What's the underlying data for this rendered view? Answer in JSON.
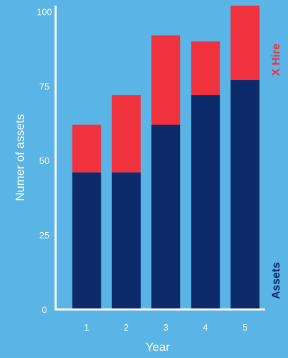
{
  "chart_data": {
    "type": "bar",
    "stacked": true,
    "categories": [
      "1",
      "2",
      "3",
      "4",
      "5"
    ],
    "series": [
      {
        "name": "Assets",
        "values": [
          46,
          46,
          62,
          72,
          77
        ],
        "color": "#0d2a6b"
      },
      {
        "name": "X Hire",
        "values": [
          16,
          26,
          30,
          18,
          25
        ],
        "color": "#f0323f"
      }
    ],
    "xlabel": "Year",
    "ylabel": "Numer of assets",
    "ylim": [
      0,
      102
    ],
    "yticks": [
      0,
      25,
      50,
      75,
      100
    ],
    "grid": false,
    "legend": "right",
    "axis_color": "#ffffff"
  }
}
